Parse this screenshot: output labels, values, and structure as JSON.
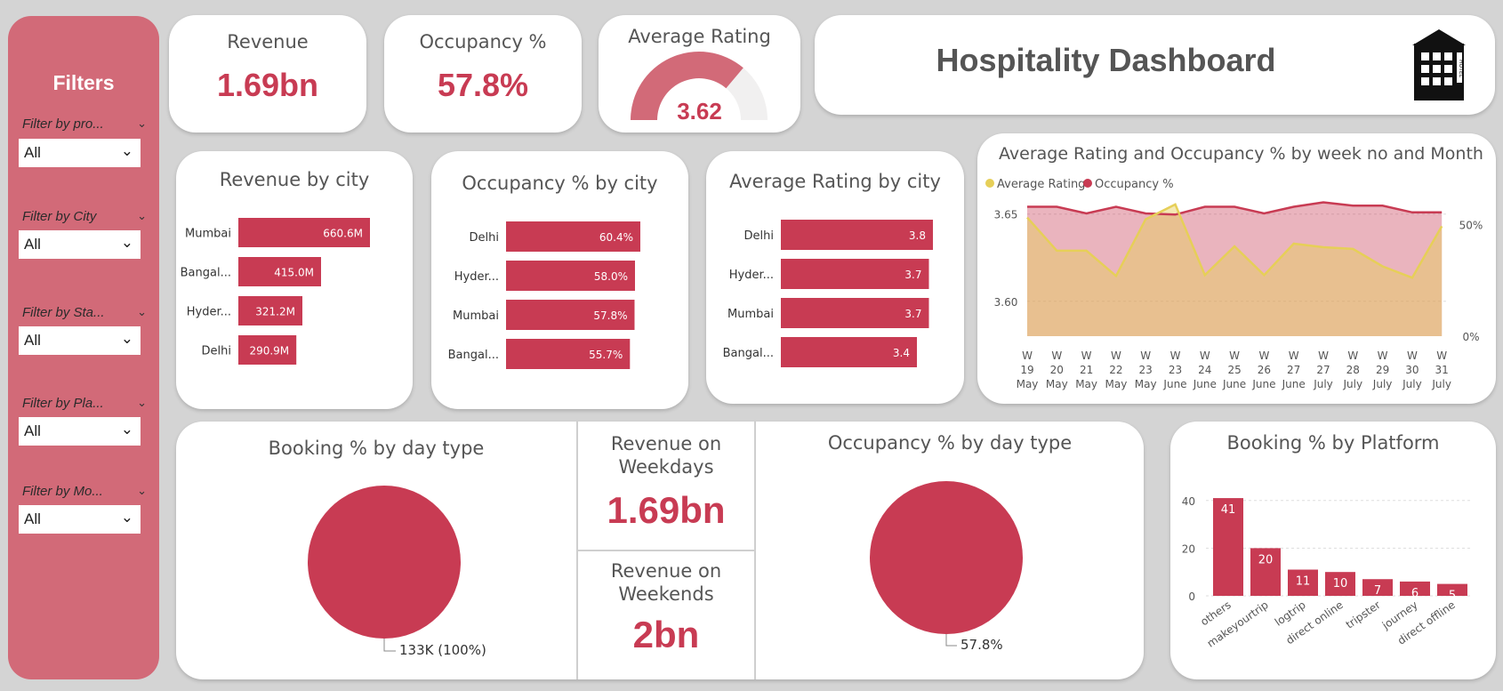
{
  "filters": {
    "title": "Filters",
    "items": [
      {
        "label": "Filter by pro...",
        "value": "All"
      },
      {
        "label": "Filter by City",
        "value": "All"
      },
      {
        "label": "Filter by Sta...",
        "value": "All"
      },
      {
        "label": "Filter by Pla...",
        "value": "All"
      },
      {
        "label": "Filter by Mo...",
        "value": "All"
      }
    ]
  },
  "kpis": {
    "revenue": {
      "label": "Revenue",
      "value": "1.69bn"
    },
    "occupancy": {
      "label": "Occupancy %",
      "value": "57.8%"
    },
    "rating": {
      "label": "Average Rating",
      "value": "3.62"
    }
  },
  "header": {
    "title": "Hospitality Dashboard",
    "icon": "hotel-building-icon",
    "icon_text": "HOTEL"
  },
  "weekday_revenue": {
    "label": "Revenue on Weekdays",
    "value": "1.69bn"
  },
  "weekend_revenue": {
    "label": "Revenue on Weekends",
    "value": "2bn"
  },
  "colors": {
    "accent": "#c83b53",
    "sidebar": "#d26a78",
    "yellow": "#e6cf58"
  },
  "chart_data": [
    {
      "id": "revenue_by_city",
      "type": "bar",
      "orientation": "horizontal",
      "title": "Revenue by city",
      "categories": [
        "Mumbai",
        "Bangal...",
        "Hyder...",
        "Delhi"
      ],
      "values": [
        660.6,
        415.0,
        321.2,
        290.9
      ],
      "labels": [
        "660.6M",
        "415.0M",
        "321.2M",
        "290.9M"
      ],
      "xlim": [
        0,
        660.6
      ]
    },
    {
      "id": "occupancy_by_city",
      "type": "bar",
      "orientation": "horizontal",
      "title": "Occupancy % by city",
      "categories": [
        "Delhi",
        "Hyder...",
        "Mumbai",
        "Bangal..."
      ],
      "values": [
        60.4,
        58.0,
        57.8,
        55.7
      ],
      "labels": [
        "60.4%",
        "58.0%",
        "57.8%",
        "55.7%"
      ],
      "xlim": [
        0,
        60.4
      ]
    },
    {
      "id": "rating_by_city",
      "type": "bar",
      "orientation": "horizontal",
      "title": "Average Rating by city",
      "categories": [
        "Delhi",
        "Hyder...",
        "Mumbai",
        "Bangal..."
      ],
      "values": [
        3.8,
        3.7,
        3.7,
        3.4
      ],
      "labels": [
        "3.8",
        "3.7",
        "3.7",
        "3.4"
      ],
      "xlim": [
        0,
        3.8
      ]
    },
    {
      "id": "rating_occupancy_by_week",
      "type": "area",
      "title": "Average Rating and Occupancy % by week no and Month",
      "legend": "top-left",
      "grid": true,
      "x": [
        "W 19 May",
        "W 20 May",
        "W 21 May",
        "W 22 May",
        "W 23 May",
        "W 23 June",
        "W 24 June",
        "W 25 June",
        "W 26 June",
        "W 27 June",
        "W 27 July",
        "W 28 July",
        "W 29 July",
        "W 30 July",
        "W 31 July"
      ],
      "x_week": [
        "W 19",
        "W 20",
        "W 21",
        "W 22",
        "W 23",
        "W 23",
        "W 24",
        "W 25",
        "W 26",
        "W 27",
        "W 27",
        "W 28",
        "W 29",
        "W 30",
        "W 31"
      ],
      "x_month": [
        "May",
        "May",
        "May",
        "May",
        "May",
        "June",
        "June",
        "June",
        "June",
        "June",
        "July",
        "July",
        "July",
        "July",
        "July"
      ],
      "y_left_ticks": [
        "3.60",
        "3.65"
      ],
      "y_right_ticks": [
        "0%",
        "50%"
      ],
      "y_left_lim": [
        3.58,
        3.658
      ],
      "y_right_lim": [
        0,
        0.61
      ],
      "series": [
        {
          "name": "Average Rating",
          "axis": "left",
          "color": "#e6cf58",
          "values": [
            3.648,
            3.629,
            3.629,
            3.6145,
            3.647,
            3.6555,
            3.615,
            3.6315,
            3.615,
            3.633,
            3.631,
            3.63,
            3.62,
            3.6135,
            3.643
          ]
        },
        {
          "name": "Occupancy %",
          "axis": "right",
          "color": "#c83b53",
          "values": [
            0.58,
            0.58,
            0.55,
            0.58,
            0.55,
            0.545,
            0.58,
            0.58,
            0.55,
            0.58,
            0.6,
            0.585,
            0.585,
            0.555,
            0.555
          ]
        }
      ]
    },
    {
      "id": "booking_by_day_type",
      "type": "pie",
      "title": "Booking % by day type",
      "slices": [
        {
          "value": 100,
          "label": "133K (100%)"
        }
      ]
    },
    {
      "id": "occupancy_by_day_type",
      "type": "pie",
      "title": "Occupancy % by day type",
      "slices": [
        {
          "value": 100,
          "label": "57.8%"
        }
      ]
    },
    {
      "id": "booking_by_platform",
      "type": "bar",
      "title": "Booking % by Platform",
      "categories": [
        "others",
        "makeyourtrip",
        "logtrip",
        "direct online",
        "tripster",
        "journey",
        "direct offline"
      ],
      "values": [
        41,
        20,
        11,
        10,
        7,
        6,
        5
      ],
      "ylim": [
        0,
        47
      ],
      "y_ticks": [
        "0",
        "20",
        "40"
      ],
      "grid": true
    }
  ]
}
